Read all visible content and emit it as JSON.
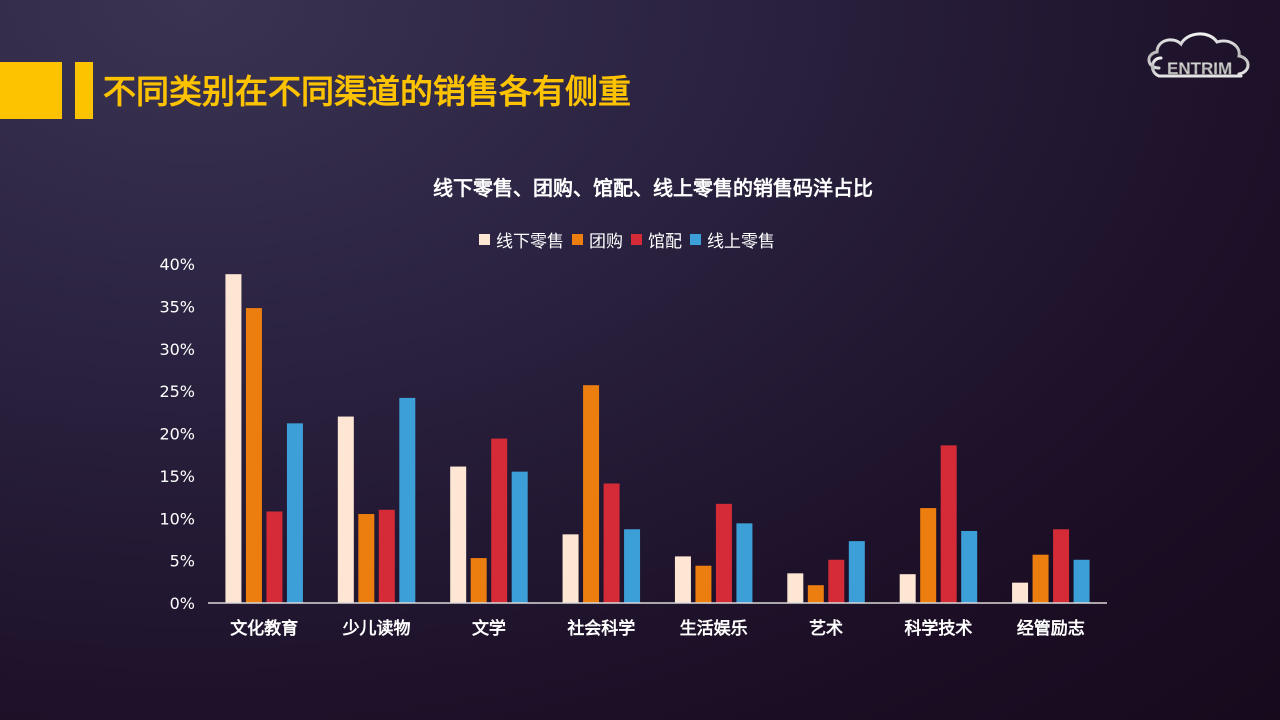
{
  "header": {
    "title": "不同类别在不同渠道的销售各有侧重",
    "accent_color": "#fdc301"
  },
  "logo": {
    "text": "ENTRIM",
    "icon": "cloud-icon"
  },
  "chart_data": {
    "type": "bar",
    "title": "线下零售、团购、馆配、线上零售的销售码洋占比",
    "categories": [
      "文化教育",
      "少儿读物",
      "文学",
      "社会科学",
      "生活娱乐",
      "艺术",
      "科学技术",
      "经管励志"
    ],
    "series": [
      {
        "name": "线下零售",
        "color": "#fde6d3",
        "values": [
          38.8,
          22.0,
          16.1,
          8.1,
          5.5,
          3.5,
          3.4,
          2.4
        ]
      },
      {
        "name": "团购",
        "color": "#ec7d0f",
        "values": [
          34.8,
          10.5,
          5.3,
          25.7,
          4.4,
          2.1,
          11.2,
          5.7
        ]
      },
      {
        "name": "馆配",
        "color": "#d42b37",
        "values": [
          10.8,
          11.0,
          19.4,
          14.1,
          11.7,
          5.1,
          18.6,
          8.7
        ]
      },
      {
        "name": "线上零售",
        "color": "#3d9fd8",
        "values": [
          21.2,
          24.2,
          15.5,
          8.7,
          9.4,
          7.3,
          8.5,
          5.1
        ]
      }
    ],
    "y_ticks": [
      "0%",
      "5%",
      "10%",
      "15%",
      "20%",
      "25%",
      "30%",
      "35%",
      "40%"
    ],
    "ylim": [
      0,
      40
    ],
    "y_unit": "%",
    "legend_position": "top-center",
    "grid": false
  }
}
